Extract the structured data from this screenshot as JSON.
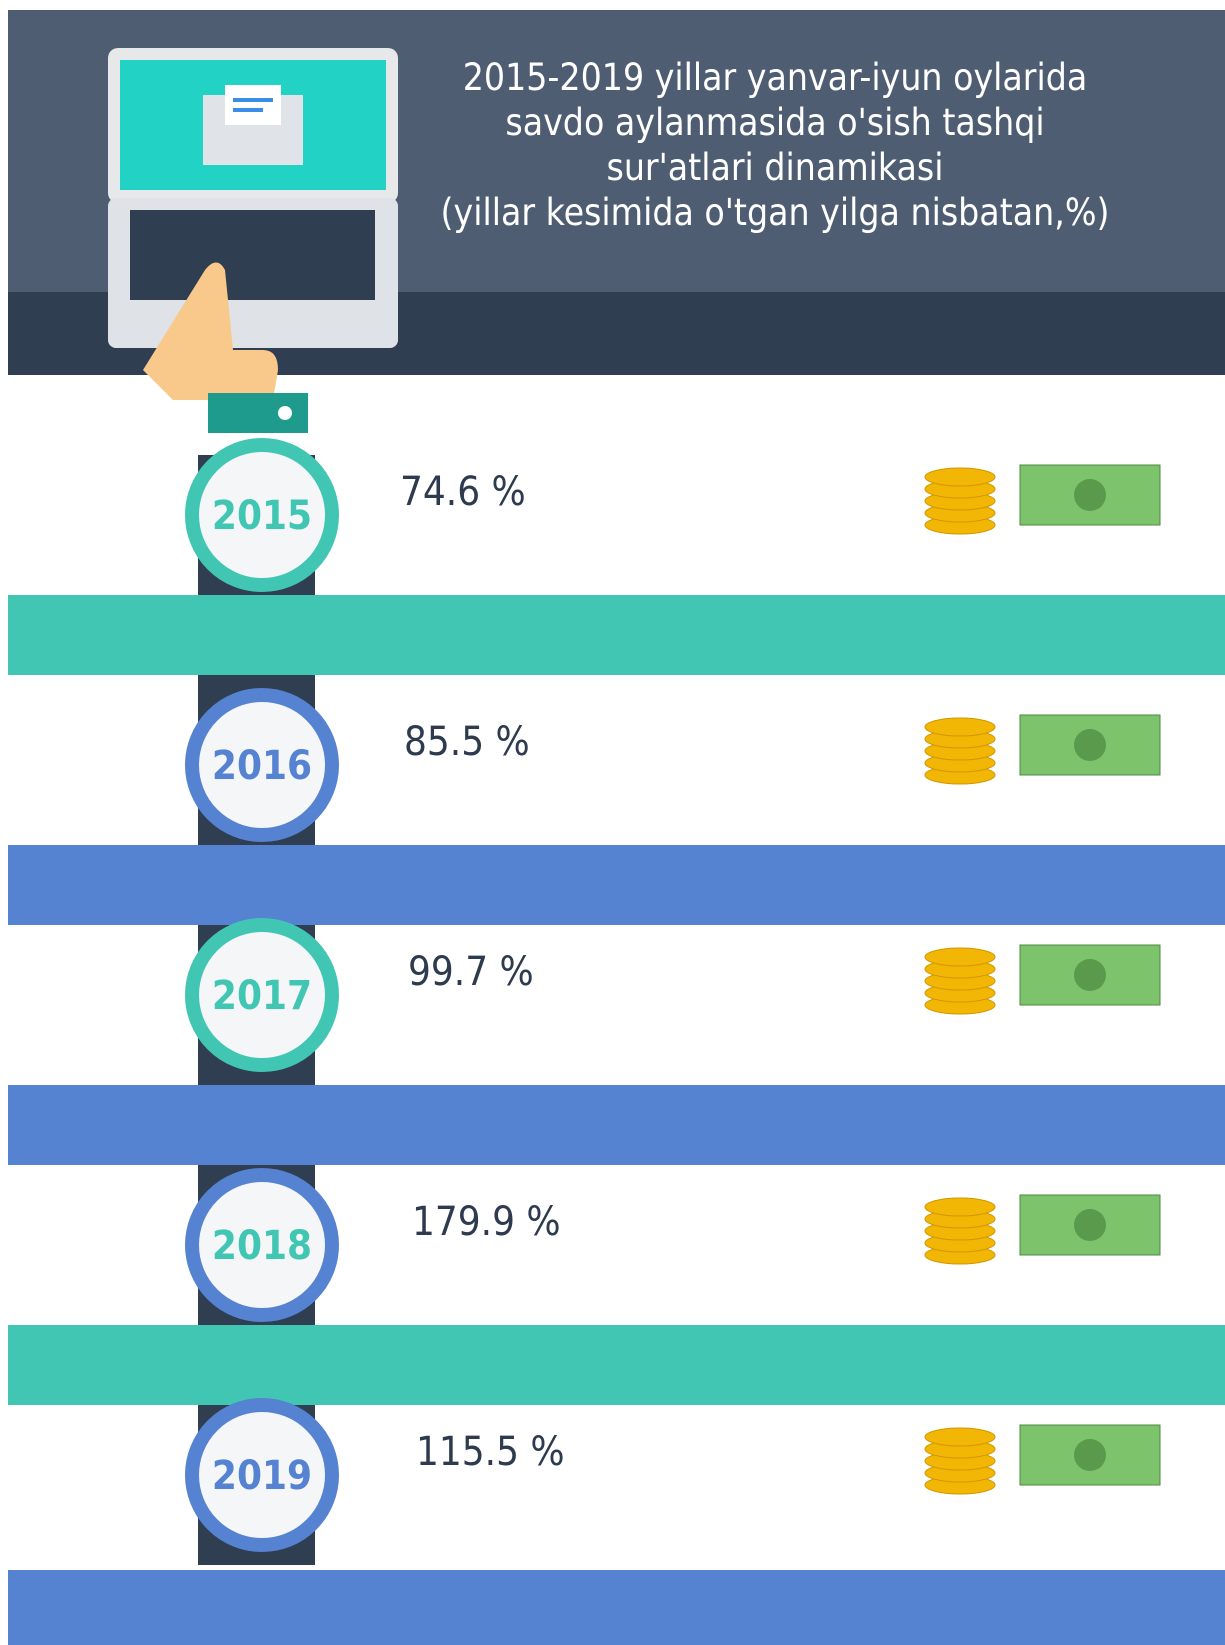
{
  "title": [
    "2015-2019 yillar yanvar-iyun oylarida",
    "savdo aylanmasida o'sish tashqi",
    "sur'atlari dinamikasi",
    "(yillar kesimida o'tgan yilga nisbatan,%)"
  ],
  "items": [
    {
      "year": "2015",
      "value": "74.6 %",
      "ring_color": "#41c6b4",
      "year_color": "#41c6b4",
      "band_color": "#41c6b4"
    },
    {
      "year": "2016",
      "value": "85.5 %",
      "ring_color": "#5582d1",
      "year_color": "#5582d1",
      "band_color": "#5582d1"
    },
    {
      "year": "2017",
      "value": "99.7 %",
      "ring_color": "#41c6b4",
      "year_color": "#41c6b4",
      "band_color": "#5582d1"
    },
    {
      "year": "2018",
      "value": "179.9 %",
      "ring_color": "#5582d1",
      "year_color": "#41c6b4",
      "band_color": "#41c6b4"
    },
    {
      "year": "2019",
      "value": "115.5 %",
      "ring_color": "#5582d1",
      "year_color": "#5582d1",
      "band_color": "#5582d1"
    }
  ]
}
